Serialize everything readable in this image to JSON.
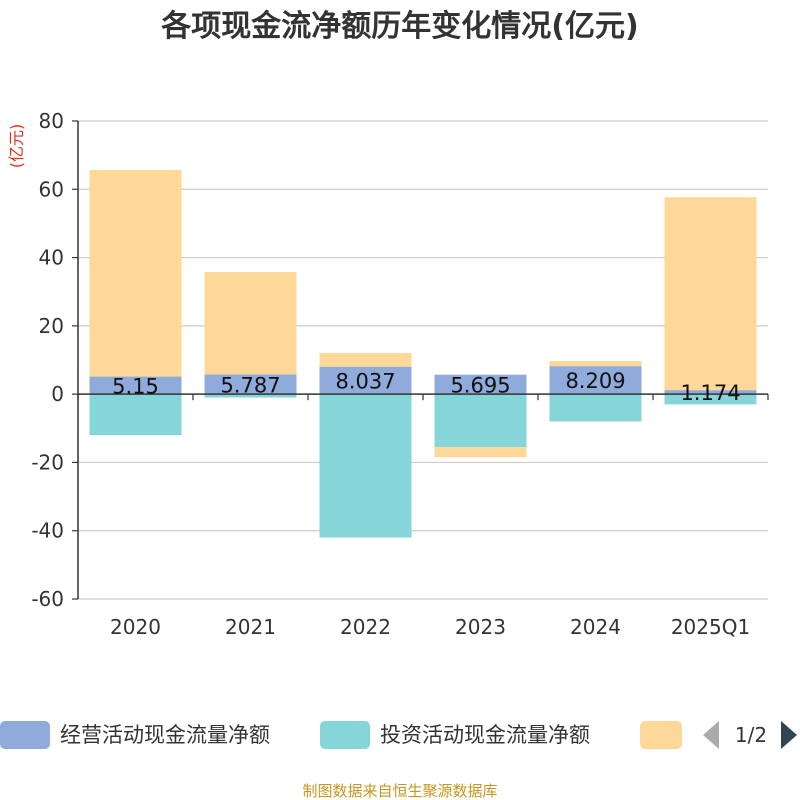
{
  "chart_data": {
    "type": "bar",
    "stacked": true,
    "title": "各项现金流净额历年变化情况(亿元)",
    "ylabel": "(亿元)",
    "xlabel": "",
    "ylim": [
      -60,
      80
    ],
    "yticks": [
      80,
      60,
      40,
      20,
      0,
      -20,
      -40,
      -60
    ],
    "grid": true,
    "categories": [
      "2020",
      "2021",
      "2022",
      "2023",
      "2024",
      "2025Q1"
    ],
    "series": [
      {
        "name": "经营活动现金流量净额",
        "color": "#8fabdb",
        "values": [
          5.15,
          5.787,
          8.037,
          5.695,
          8.209,
          1.174
        ],
        "labels": [
          "5.15",
          "5.787",
          "8.037",
          "5.695",
          "8.209",
          "1.174"
        ]
      },
      {
        "name": "投资活动现金流量净额",
        "color": "#86d5d8",
        "values": [
          -12,
          -1,
          -42,
          -15.5,
          -8,
          -3
        ]
      },
      {
        "name": "",
        "color": "#fed898",
        "values": [
          60.5,
          30,
          4,
          -3,
          1.5,
          56.5
        ]
      }
    ],
    "legend": {
      "position": "bottom",
      "page": "1/2"
    }
  },
  "footer": {
    "source": "制图数据来自恒生聚源数据库"
  }
}
